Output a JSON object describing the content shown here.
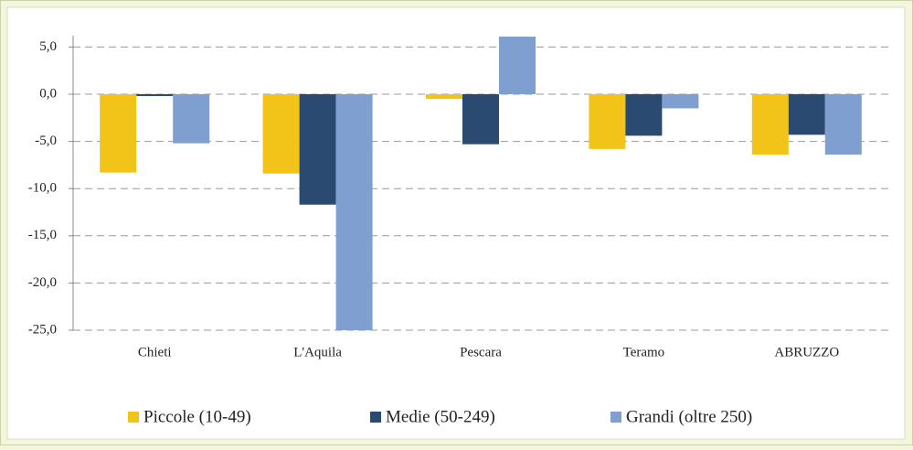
{
  "chart_data": {
    "type": "bar",
    "categories": [
      "Chieti",
      "L'Aquila",
      "Pescara",
      "Teramo",
      "ABRUZZO"
    ],
    "series": [
      {
        "name": "Piccole (10-49)",
        "color": "#f2c318",
        "values": [
          -8.3,
          -8.4,
          -0.5,
          -5.8,
          -6.4
        ]
      },
      {
        "name": "Medie (50-249)",
        "color": "#2a4a72",
        "values": [
          -0.2,
          -11.7,
          -5.3,
          -4.4,
          -4.3
        ]
      },
      {
        "name": "Grandi (oltre 250)",
        "color": "#7f9fd0",
        "values": [
          -5.2,
          -25.0,
          6.1,
          -1.5,
          -6.4
        ]
      }
    ],
    "ylim": [
      -25,
      6.2
    ],
    "yticks": [
      {
        "value": -25,
        "label": "-25,0"
      },
      {
        "value": -20,
        "label": "-20,0"
      },
      {
        "value": -15,
        "label": "-15,0"
      },
      {
        "value": -10,
        "label": "-10,0"
      },
      {
        "value": -5,
        "label": "-5,0"
      },
      {
        "value": 0,
        "label": "0,0"
      },
      {
        "value": 5,
        "label": "5,0"
      }
    ],
    "grid": true
  }
}
